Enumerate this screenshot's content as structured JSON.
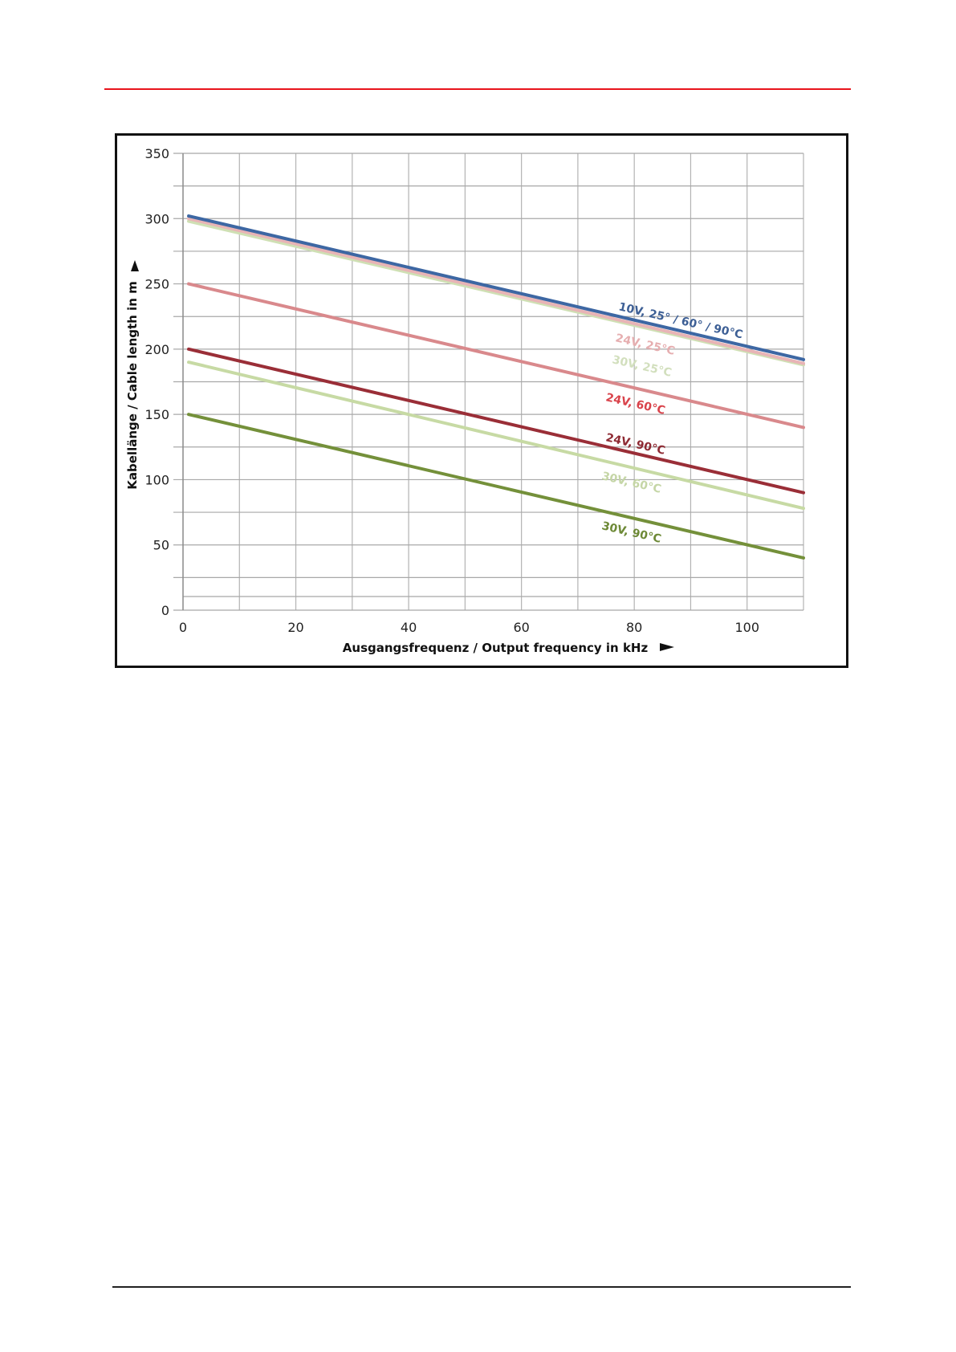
{
  "chart_data": {
    "type": "line",
    "title": "",
    "xlabel": "Ausgangsfrequenz / Output frequency in kHz",
    "ylabel": "Kabellänge / Cable length in m",
    "xlim": [
      0,
      110
    ],
    "ylim": [
      0,
      350
    ],
    "xticks": [
      0,
      20,
      40,
      60,
      80,
      100
    ],
    "yticks": [
      0,
      50,
      100,
      150,
      200,
      250,
      300,
      350
    ],
    "grid": true,
    "series": [
      {
        "name": "10V, 25° / 60° / 90°C",
        "color": "#3d67a3",
        "label_color": "#3d5f95",
        "x": [
          1,
          110
        ],
        "y": [
          302,
          192
        ]
      },
      {
        "name": "24V, 25°C",
        "color": "#e8b4b6",
        "label_color": "#e6aeb0",
        "x": [
          1,
          110
        ],
        "y": [
          300,
          189
        ]
      },
      {
        "name": "30V, 25°C",
        "color": "#cfe0b4",
        "label_color": "#d2dfbd",
        "x": [
          1,
          110
        ],
        "y": [
          298,
          188
        ]
      },
      {
        "name": "24V, 60°C",
        "color": "#d9898c",
        "label_color": "#d9434b",
        "x": [
          1,
          110
        ],
        "y": [
          250,
          140
        ]
      },
      {
        "name": "24V, 90°C",
        "color": "#9a2e37",
        "label_color": "#8e2a33",
        "x": [
          1,
          110
        ],
        "y": [
          200,
          90
        ]
      },
      {
        "name": "30V, 60°C",
        "color": "#c7daa4",
        "label_color": "#c5d6a6",
        "x": [
          1,
          110
        ],
        "y": [
          190,
          78
        ]
      },
      {
        "name": "30V, 90°C",
        "color": "#74903a",
        "label_color": "#6d8936",
        "x": [
          1,
          110
        ],
        "y": [
          150,
          40
        ]
      }
    ]
  }
}
